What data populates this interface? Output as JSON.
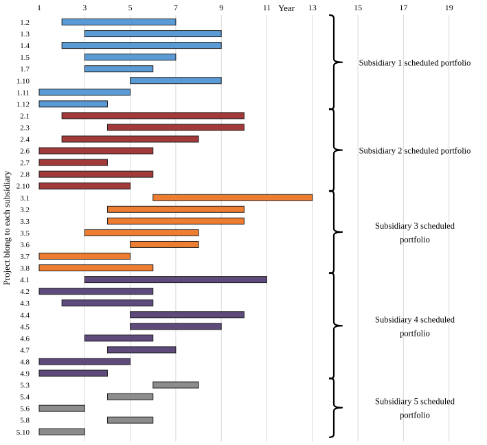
{
  "chart_data": {
    "type": "gantt",
    "xlabel": "Year",
    "ylabel": "Project blong to each subsidiary",
    "xlim": [
      1,
      20
    ],
    "xticks": [
      1,
      3,
      5,
      7,
      9,
      11,
      13,
      15,
      17,
      19
    ],
    "grid": true,
    "groups": [
      {
        "name": "Subsidiary 1 scheduled portfolio",
        "label_lines": [
          "Subsidiary 1 scheduled portfolio"
        ],
        "color": "#5b9bd5",
        "tasks": [
          {
            "id": "1.2",
            "start": 2,
            "end": 7
          },
          {
            "id": "1.3",
            "start": 3,
            "end": 9
          },
          {
            "id": "1.4",
            "start": 2,
            "end": 9
          },
          {
            "id": "1.5",
            "start": 3,
            "end": 7
          },
          {
            "id": "1.7",
            "start": 3,
            "end": 6
          },
          {
            "id": "1.10",
            "start": 5,
            "end": 9
          },
          {
            "id": "1.11",
            "start": 1,
            "end": 5
          },
          {
            "id": "1.12",
            "start": 1,
            "end": 4
          }
        ]
      },
      {
        "name": "Subsidiary 2 scheduled portfolio",
        "label_lines": [
          "Subsidiary 2 scheduled portfolio"
        ],
        "color": "#a33a3a",
        "tasks": [
          {
            "id": "2.1",
            "start": 2,
            "end": 10
          },
          {
            "id": "2.3",
            "start": 4,
            "end": 10
          },
          {
            "id": "2.4",
            "start": 2,
            "end": 8
          },
          {
            "id": "2.6",
            "start": 1,
            "end": 6
          },
          {
            "id": "2.7",
            "start": 1,
            "end": 4
          },
          {
            "id": "2.8",
            "start": 1,
            "end": 6
          },
          {
            "id": "2.10",
            "start": 1,
            "end": 5
          }
        ]
      },
      {
        "name": "Subsidiary 3 scheduled portfolio",
        "label_lines": [
          "Subsidiary 3 scheduled",
          "portfolio"
        ],
        "color": "#ed7d31",
        "tasks": [
          {
            "id": "3.1",
            "start": 6,
            "end": 13
          },
          {
            "id": "3.2",
            "start": 4,
            "end": 10
          },
          {
            "id": "3.3",
            "start": 4,
            "end": 10
          },
          {
            "id": "3.5",
            "start": 3,
            "end": 8
          },
          {
            "id": "3.6",
            "start": 5,
            "end": 8
          },
          {
            "id": "3.7",
            "start": 1,
            "end": 5
          },
          {
            "id": "3.8",
            "start": 1,
            "end": 6
          }
        ]
      },
      {
        "name": "Subsidiary 4 scheduled portfolio",
        "label_lines": [
          "Subsidiary 4 scheduled",
          "portfolio"
        ],
        "color": "#5e4b7c",
        "tasks": [
          {
            "id": "4.1",
            "start": 3,
            "end": 11
          },
          {
            "id": "4.2",
            "start": 1,
            "end": 6
          },
          {
            "id": "4.3",
            "start": 2,
            "end": 6
          },
          {
            "id": "4.4",
            "start": 5,
            "end": 10
          },
          {
            "id": "4.5",
            "start": 5,
            "end": 9
          },
          {
            "id": "4.6",
            "start": 3,
            "end": 6
          },
          {
            "id": "4.7",
            "start": 4,
            "end": 7
          },
          {
            "id": "4.8",
            "start": 1,
            "end": 5
          },
          {
            "id": "4.9",
            "start": 1,
            "end": 4
          }
        ]
      },
      {
        "name": "Subsidiary 5 scheduled portfolio",
        "label_lines": [
          "Subsidiary 5 scheduled",
          "portfolio"
        ],
        "color": "#8c8c8c",
        "tasks": [
          {
            "id": "5.3",
            "start": 6,
            "end": 8
          },
          {
            "id": "5.4",
            "start": 4,
            "end": 6
          },
          {
            "id": "5.6",
            "start": 1,
            "end": 3
          },
          {
            "id": "5.8",
            "start": 4,
            "end": 6
          },
          {
            "id": "5.10",
            "start": 1,
            "end": 3
          }
        ]
      }
    ]
  }
}
